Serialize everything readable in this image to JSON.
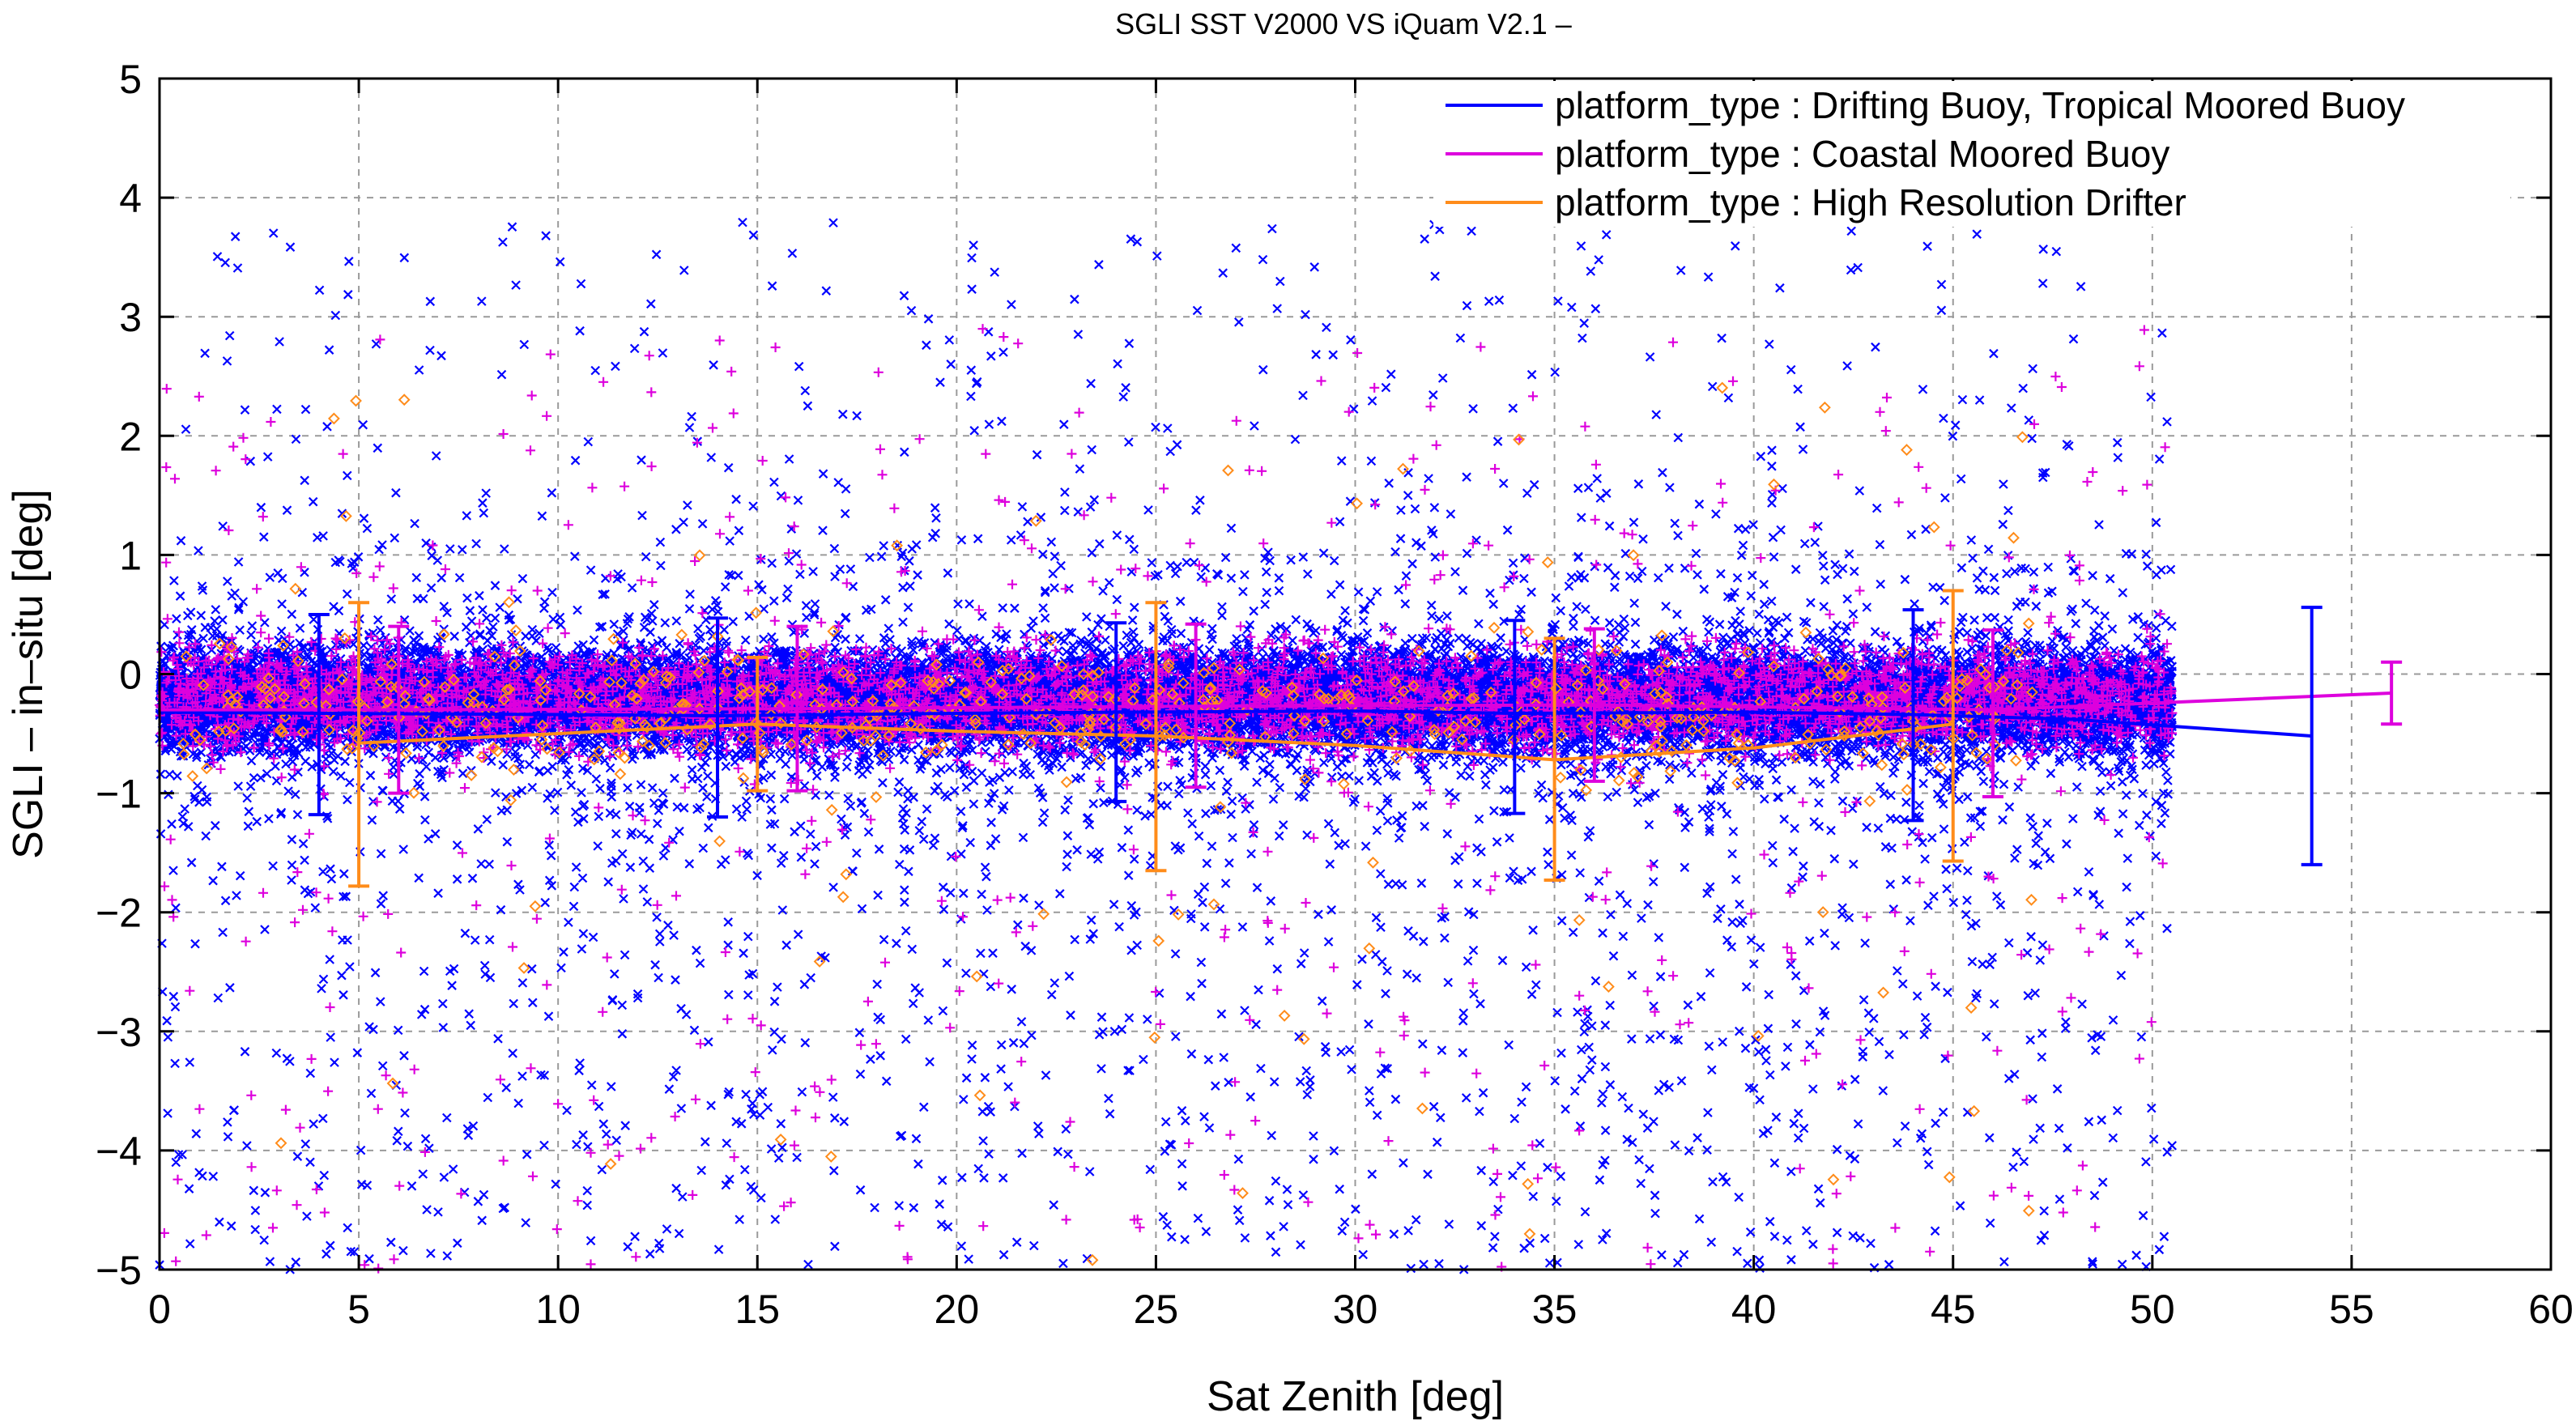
{
  "chart_data": {
    "type": "scatter",
    "title": "SGLI SST V2000 VS iQuam V2.1  –",
    "xlabel": "Sat Zenith [deg]",
    "ylabel": "SGLI – in–situ [deg]",
    "xlim": [
      0,
      60
    ],
    "ylim": [
      -5,
      5
    ],
    "xticks": [
      0,
      5,
      10,
      15,
      20,
      25,
      30,
      35,
      40,
      45,
      50,
      55,
      60
    ],
    "yticks": [
      -5,
      -4,
      -3,
      -2,
      -1,
      0,
      1,
      2,
      3,
      4,
      5
    ],
    "xtick_labels": [
      "0",
      "5",
      "10",
      "15",
      "20",
      "25",
      "30",
      "35",
      "40",
      "45",
      "50",
      "55",
      "60"
    ],
    "ytick_labels": [
      "−5",
      "−4",
      "−3",
      "−2",
      "−1",
      "0",
      "1",
      "2",
      "3",
      "4",
      "5"
    ],
    "grid": true,
    "legend_position": "top-right",
    "series": [
      {
        "name": "platform_type : Drifting Buoy, Tropical Moored Buoy",
        "color": "#0000ff",
        "marker": "x",
        "line_x": [
          0,
          4,
          10,
          14,
          20,
          24,
          30,
          34,
          40,
          44,
          48,
          54
        ],
        "line_y": [
          -0.32,
          -0.33,
          -0.34,
          -0.35,
          -0.33,
          -0.32,
          -0.31,
          -0.33,
          -0.32,
          -0.34,
          -0.38,
          -0.52
        ],
        "errorbars": [
          {
            "x": 4,
            "low": -1.18,
            "high": 0.5
          },
          {
            "x": 14,
            "low": -1.2,
            "high": 0.47
          },
          {
            "x": 24,
            "low": -1.07,
            "high": 0.43
          },
          {
            "x": 34,
            "low": -1.17,
            "high": 0.45
          },
          {
            "x": 44,
            "low": -1.23,
            "high": 0.54
          },
          {
            "x": 54,
            "low": -1.6,
            "high": 0.56
          }
        ]
      },
      {
        "name": "platform_type : Coastal Moored Buoy",
        "color": "#dd00dd",
        "marker": "+",
        "line_x": [
          0,
          6,
          16,
          26,
          36,
          46,
          56
        ],
        "line_y": [
          -0.3,
          -0.3,
          -0.29,
          -0.27,
          -0.26,
          -0.3,
          -0.16
        ],
        "errorbars": [
          {
            "x": 6,
            "low": -1.0,
            "high": 0.4
          },
          {
            "x": 16,
            "low": -0.98,
            "high": 0.4
          },
          {
            "x": 26,
            "low": -0.95,
            "high": 0.42
          },
          {
            "x": 36,
            "low": -0.9,
            "high": 0.38
          },
          {
            "x": 46,
            "low": -1.03,
            "high": 0.37
          },
          {
            "x": 56,
            "low": -0.42,
            "high": 0.1
          }
        ]
      },
      {
        "name": "platform_type : High Resolution Drifter",
        "color": "#ff8c1a",
        "marker": "diamond",
        "line_x": [
          5,
          10,
          15,
          20,
          25,
          30,
          35,
          40,
          45
        ],
        "line_y": [
          -0.58,
          -0.5,
          -0.42,
          -0.48,
          -0.52,
          -0.6,
          -0.72,
          -0.62,
          -0.42
        ],
        "errorbars": [
          {
            "x": 5,
            "low": -1.78,
            "high": 0.6
          },
          {
            "x": 15,
            "low": -0.98,
            "high": 0.14
          },
          {
            "x": 25,
            "low": -1.65,
            "high": 0.6
          },
          {
            "x": 35,
            "low": -1.73,
            "high": 0.3
          },
          {
            "x": 45,
            "low": -1.57,
            "high": 0.7
          }
        ]
      }
    ],
    "scatter_distribution": {
      "x_range": [
        0,
        50.5
      ],
      "core_band": [
        -0.75,
        0.35
      ],
      "outlier_range": [
        -5,
        3.8
      ]
    }
  }
}
